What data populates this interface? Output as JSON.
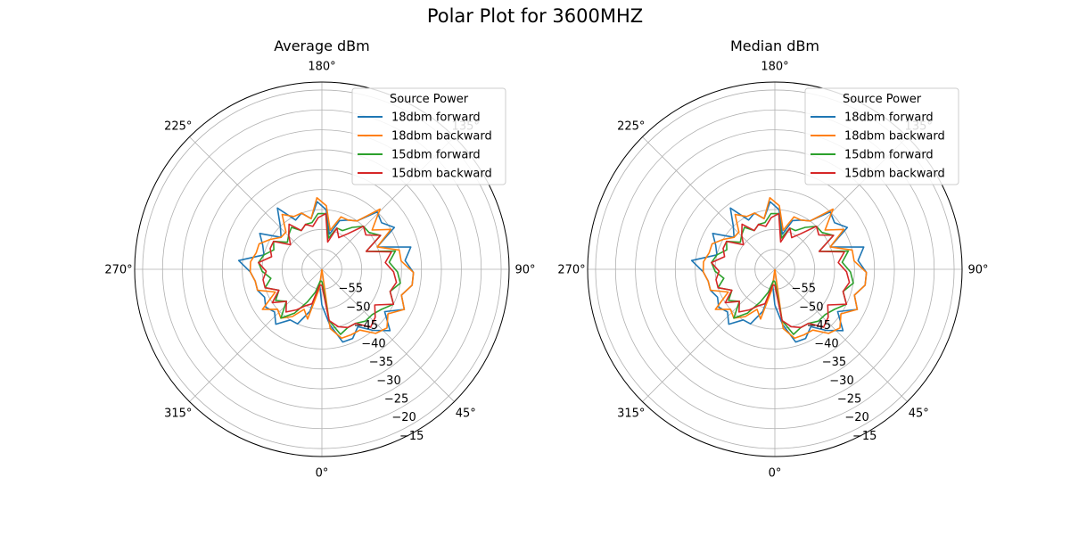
{
  "figure": {
    "title": "Polar Plot for 3600MHZ"
  },
  "legend": {
    "title": "Source Power"
  },
  "colors": {
    "18dbm forward": "#1f77b4",
    "18dbm backward": "#ff7f0e",
    "15dbm forward": "#2ca02c",
    "15dbm backward": "#d62728",
    "grid": "#b0b0b0"
  },
  "chart_data": [
    {
      "type": "polar-line",
      "title": "Average dBm",
      "theta_zero_location": "bottom",
      "theta_direction": "counterclockwise",
      "theta_ticks": [
        0,
        45,
        90,
        135,
        180,
        225,
        270,
        315
      ],
      "theta_tick_labels": [
        "0°",
        "45°",
        "90°",
        "135°",
        "180°",
        "225°",
        "270°",
        "315°"
      ],
      "r_ticks": [
        -55,
        -50,
        -45,
        -40,
        -35,
        -30,
        -25,
        -20,
        -15
      ],
      "r_tick_labels": [
        "−55",
        "−50",
        "−45",
        "−40",
        "−35",
        "−30",
        "−25",
        "−20",
        "−15"
      ],
      "rlim": [
        -60,
        -13
      ],
      "rlabel_angle_deg": 22.5,
      "grid": true,
      "legend_position": "upper right",
      "theta_deg": [
        0,
        8,
        16,
        24,
        32,
        40,
        48,
        56,
        64,
        72,
        80,
        88,
        96,
        104,
        112,
        120,
        128,
        136,
        144,
        152,
        160,
        168,
        176,
        184,
        192,
        200,
        208,
        216,
        224,
        232,
        240,
        248,
        256,
        264,
        272,
        280,
        288,
        296,
        304,
        312,
        320,
        328,
        336,
        344,
        352
      ],
      "series": [
        {
          "name": "18dbm forward",
          "r": [
            -51,
            -46,
            -41,
            -41,
            -43,
            -40,
            -37,
            -41,
            -37,
            -39,
            -37,
            -37,
            -39,
            -37,
            -45,
            -39,
            -41,
            -40,
            -45,
            -46,
            -47,
            -51,
            -45,
            -43,
            -47,
            -45,
            -46,
            -41,
            -45,
            -47,
            -42,
            -44,
            -45,
            -39,
            -42,
            -43,
            -43,
            -44,
            -43,
            -44,
            -42,
            -45,
            -45,
            -49,
            -56
          ]
        },
        {
          "name": "18dbm backward",
          "r": [
            -60,
            -45,
            -42,
            -42,
            -42,
            -39,
            -38,
            -40,
            -37,
            -39,
            -37,
            -37,
            -40,
            -40,
            -45,
            -40,
            -44,
            -39,
            -45,
            -46,
            -46,
            -50,
            -44,
            -42,
            -47,
            -45,
            -45,
            -43,
            -47,
            -47,
            -45,
            -43,
            -43,
            -42,
            -42,
            -43,
            -43,
            -47,
            -42,
            -45,
            -44,
            -46,
            -49,
            -47,
            -55
          ]
        },
        {
          "name": "15dbm forward",
          "r": [
            -57,
            -47,
            -43,
            -44,
            -44,
            -43,
            -43,
            -42,
            -40,
            -42,
            -40,
            -41,
            -43,
            -41,
            -48,
            -43,
            -45,
            -45,
            -47,
            -49,
            -49,
            -52,
            -46,
            -46,
            -48,
            -48,
            -49,
            -47,
            -48,
            -49,
            -46,
            -47,
            -45,
            -44,
            -45,
            -47,
            -45,
            -48,
            -46,
            -48,
            -44,
            -47,
            -51,
            -54,
            -57
          ]
        },
        {
          "name": "15dbm backward",
          "r": [
            -56,
            -47,
            -45,
            -44,
            -44,
            -41,
            -42,
            -44,
            -40,
            -42,
            -41,
            -42,
            -44,
            -42,
            -48,
            -43,
            -46,
            -45,
            -49,
            -51,
            -49,
            -53,
            -46,
            -47,
            -49,
            -48,
            -49,
            -46,
            -48,
            -50,
            -46,
            -46,
            -47,
            -44,
            -46,
            -45,
            -45,
            -48,
            -45,
            -48,
            -46,
            -48,
            -50,
            -51,
            -56
          ]
        }
      ]
    },
    {
      "type": "polar-line",
      "title": "Median dBm",
      "theta_zero_location": "bottom",
      "theta_direction": "counterclockwise",
      "theta_ticks": [
        0,
        45,
        90,
        135,
        180,
        225,
        270,
        315
      ],
      "theta_tick_labels": [
        "0°",
        "45°",
        "90°",
        "135°",
        "180°",
        "225°",
        "270°",
        "315°"
      ],
      "r_ticks": [
        -55,
        -50,
        -45,
        -40,
        -35,
        -30,
        -25,
        -20,
        -15
      ],
      "r_tick_labels": [
        "−55",
        "−50",
        "−45",
        "−40",
        "−35",
        "−30",
        "−25",
        "−20",
        "−15"
      ],
      "rlim": [
        -60,
        -13
      ],
      "rlabel_angle_deg": 22.5,
      "grid": true,
      "legend_position": "upper right",
      "theta_deg": [
        0,
        8,
        16,
        24,
        32,
        40,
        48,
        56,
        64,
        72,
        80,
        88,
        96,
        104,
        112,
        120,
        128,
        136,
        144,
        152,
        160,
        168,
        176,
        184,
        192,
        200,
        208,
        216,
        224,
        232,
        240,
        248,
        256,
        264,
        272,
        280,
        288,
        296,
        304,
        312,
        320,
        328,
        336,
        344,
        352
      ],
      "series": [
        {
          "name": "18dbm forward",
          "r": [
            -51,
            -46,
            -41,
            -41,
            -43,
            -40,
            -37,
            -41,
            -37,
            -39,
            -37,
            -37,
            -39,
            -37,
            -45,
            -39,
            -41,
            -40,
            -45,
            -46,
            -47,
            -51,
            -45,
            -43,
            -47,
            -45,
            -46,
            -41,
            -45,
            -47,
            -42,
            -44,
            -45,
            -39,
            -42,
            -43,
            -43,
            -44,
            -43,
            -44,
            -42,
            -45,
            -45,
            -49,
            -56
          ]
        },
        {
          "name": "18dbm backward",
          "r": [
            -60,
            -45,
            -42,
            -42,
            -42,
            -39,
            -38,
            -40,
            -37,
            -39,
            -37,
            -37,
            -40,
            -40,
            -45,
            -40,
            -44,
            -39,
            -45,
            -46,
            -46,
            -50,
            -44,
            -42,
            -47,
            -45,
            -45,
            -43,
            -47,
            -47,
            -45,
            -43,
            -43,
            -42,
            -42,
            -43,
            -43,
            -47,
            -42,
            -45,
            -44,
            -46,
            -49,
            -47,
            -55
          ]
        },
        {
          "name": "15dbm forward",
          "r": [
            -57,
            -47,
            -43,
            -44,
            -44,
            -43,
            -43,
            -42,
            -40,
            -42,
            -40,
            -41,
            -43,
            -41,
            -48,
            -43,
            -45,
            -45,
            -47,
            -49,
            -49,
            -52,
            -46,
            -46,
            -48,
            -48,
            -49,
            -47,
            -48,
            -49,
            -46,
            -47,
            -45,
            -44,
            -45,
            -47,
            -45,
            -48,
            -46,
            -48,
            -44,
            -47,
            -51,
            -54,
            -57
          ]
        },
        {
          "name": "15dbm backward",
          "r": [
            -56,
            -47,
            -45,
            -44,
            -44,
            -41,
            -42,
            -44,
            -40,
            -42,
            -41,
            -42,
            -44,
            -42,
            -48,
            -43,
            -46,
            -45,
            -49,
            -51,
            -49,
            -53,
            -46,
            -47,
            -49,
            -48,
            -49,
            -46,
            -48,
            -50,
            -46,
            -46,
            -47,
            -44,
            -46,
            -45,
            -45,
            -48,
            -45,
            -48,
            -46,
            -48,
            -50,
            -51,
            -56
          ]
        }
      ]
    }
  ]
}
